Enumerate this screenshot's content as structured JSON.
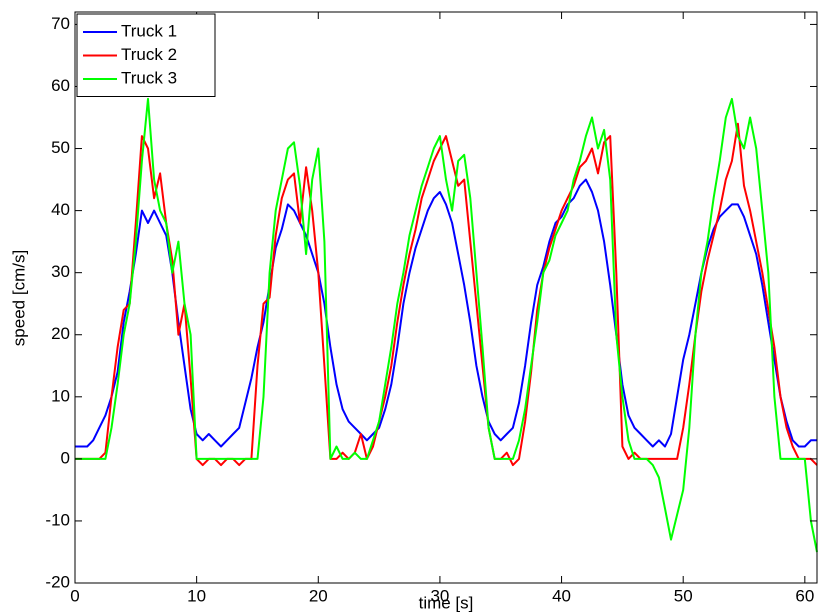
{
  "chart_data": {
    "type": "line",
    "xlabel": "time [s]",
    "ylabel": "speed [cm/s]",
    "xlim": [
      0,
      61
    ],
    "ylim": [
      -20,
      72
    ],
    "xticks": [
      0,
      10,
      20,
      30,
      40,
      50,
      60
    ],
    "yticks": [
      -20,
      -10,
      0,
      10,
      20,
      30,
      40,
      50,
      60,
      70
    ],
    "grid": false,
    "legend": "upper left",
    "x": [
      0,
      0.5,
      1,
      1.5,
      2,
      2.5,
      3,
      3.5,
      4,
      4.5,
      5,
      5.5,
      6,
      6.5,
      7,
      7.5,
      8,
      8.5,
      9,
      9.5,
      10,
      10.5,
      11,
      11.5,
      12,
      12.5,
      13,
      13.5,
      14,
      14.5,
      15,
      15.5,
      16,
      16.5,
      17,
      17.5,
      18,
      18.5,
      19,
      19.5,
      20,
      20.5,
      21,
      21.5,
      22,
      22.5,
      23,
      23.5,
      24,
      24.5,
      25,
      25.5,
      26,
      26.5,
      27,
      27.5,
      28,
      28.5,
      29,
      29.5,
      30,
      30.5,
      31,
      31.5,
      32,
      32.5,
      33,
      33.5,
      34,
      34.5,
      35,
      35.5,
      36,
      36.5,
      37,
      37.5,
      38,
      38.5,
      39,
      39.5,
      40,
      40.5,
      41,
      41.5,
      42,
      42.5,
      43,
      43.5,
      44,
      44.5,
      45,
      45.5,
      46,
      46.5,
      47,
      47.5,
      48,
      48.5,
      49,
      49.5,
      50,
      50.5,
      51,
      51.5,
      52,
      52.5,
      53,
      53.5,
      54,
      54.5,
      55,
      55.5,
      56,
      56.5,
      57,
      57.5,
      58,
      58.5,
      59,
      59.5,
      60,
      60.5,
      61
    ],
    "series": [
      {
        "name": "Truck 1",
        "color": "#0000ff",
        "values": [
          2,
          2,
          2,
          3,
          5,
          7,
          10,
          14,
          22,
          27,
          33,
          40,
          38,
          40,
          38,
          36,
          30,
          22,
          15,
          8,
          4,
          3,
          4,
          3,
          2,
          3,
          4,
          5,
          9,
          13,
          18,
          22,
          28,
          34,
          37,
          41,
          40,
          38,
          36,
          33,
          30,
          25,
          18,
          12,
          8,
          6,
          5,
          4,
          3,
          4,
          5,
          8,
          12,
          18,
          25,
          30,
          34,
          37,
          40,
          42,
          43,
          41,
          38,
          33,
          28,
          22,
          15,
          10,
          6,
          4,
          3,
          4,
          5,
          9,
          15,
          22,
          28,
          31,
          35,
          38,
          39,
          41,
          42,
          44,
          45,
          43,
          40,
          35,
          28,
          20,
          12,
          7,
          5,
          4,
          3,
          2,
          3,
          2,
          4,
          10,
          16,
          20,
          25,
          30,
          34,
          37,
          39,
          40,
          41,
          41,
          39,
          36,
          33,
          28,
          22,
          16,
          10,
          6,
          3,
          2,
          2,
          3,
          3
        ]
      },
      {
        "name": "Truck 2",
        "color": "#ff0000",
        "values": [
          0,
          0,
          0,
          0,
          0,
          1,
          10,
          18,
          24,
          25,
          38,
          52,
          50,
          42,
          46,
          38,
          32,
          20,
          25,
          13,
          0,
          -1,
          0,
          0,
          -1,
          0,
          0,
          -1,
          0,
          0,
          15,
          25,
          26,
          36,
          42,
          45,
          46,
          38,
          47,
          40,
          30,
          15,
          0,
          0,
          1,
          0,
          1,
          4,
          0,
          2,
          6,
          10,
          15,
          22,
          28,
          33,
          37,
          42,
          45,
          48,
          50,
          52,
          48,
          44,
          45,
          35,
          25,
          15,
          5,
          0,
          0,
          1,
          -1,
          0,
          6,
          14,
          24,
          30,
          34,
          37,
          40,
          42,
          44,
          47,
          48,
          50,
          46,
          51,
          52,
          30,
          2,
          0,
          1,
          0,
          0,
          0,
          0,
          0,
          0,
          0,
          5,
          12,
          20,
          27,
          32,
          36,
          40,
          45,
          48,
          54,
          44,
          40,
          35,
          30,
          24,
          18,
          10,
          5,
          2,
          0,
          0,
          0,
          -1
        ]
      },
      {
        "name": "Truck 3",
        "color": "#00ff00",
        "values": [
          0,
          0,
          0,
          0,
          0,
          0,
          5,
          12,
          20,
          25,
          35,
          48,
          58,
          45,
          40,
          38,
          30,
          35,
          25,
          20,
          0,
          0,
          0,
          0,
          0,
          0,
          0,
          0,
          0,
          0,
          0,
          10,
          30,
          40,
          45,
          50,
          51,
          44,
          33,
          45,
          50,
          35,
          0,
          2,
          0,
          0,
          1,
          0,
          0,
          3,
          6,
          12,
          18,
          25,
          30,
          36,
          40,
          44,
          47,
          50,
          52,
          45,
          40,
          48,
          49,
          42,
          30,
          18,
          5,
          0,
          0,
          0,
          0,
          3,
          8,
          15,
          22,
          30,
          32,
          36,
          38,
          40,
          45,
          48,
          52,
          55,
          50,
          53,
          45,
          20,
          10,
          3,
          0,
          0,
          0,
          -1,
          -3,
          -8,
          -13,
          -9,
          -5,
          5,
          20,
          30,
          35,
          42,
          48,
          55,
          58,
          52,
          50,
          55,
          50,
          40,
          30,
          10,
          0,
          0,
          0,
          0,
          0,
          -10,
          -15
        ]
      }
    ]
  }
}
